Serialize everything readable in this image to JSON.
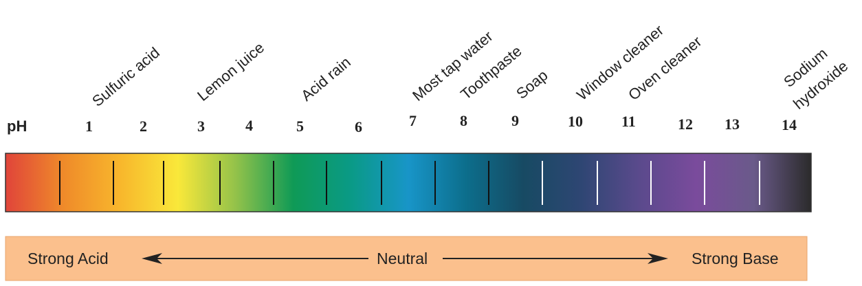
{
  "ph_label": "pH",
  "numbers": [
    "1",
    "2",
    "3",
    "4",
    "5",
    "6",
    "7",
    "8",
    "9",
    "10",
    "11",
    "12",
    "13",
    "14"
  ],
  "substances": [
    {
      "label": "Sulfuric acid"
    },
    {
      "label": "Lemon juice"
    },
    {
      "label": "Acid rain"
    },
    {
      "label": "Most tap water"
    },
    {
      "label": "Toothpaste"
    },
    {
      "label": "Soap"
    },
    {
      "label": "Window cleaner"
    },
    {
      "label": "Oven cleaner"
    },
    {
      "label": "Sodium",
      "label_line2": "hydroxide"
    }
  ],
  "scale": {
    "left": "Strong Acid",
    "center": "Neutral",
    "right": "Strong Base"
  },
  "colors": {
    "bar_stops": [
      "#e0443a",
      "#ef8a2a",
      "#f8b72c",
      "#f9e83a",
      "#93c24a",
      "#0f9a56",
      "#0a9a86",
      "#1895c8",
      "#0c6e8c",
      "#174a63",
      "#2e4673",
      "#5a4a8c",
      "#7a4b9c",
      "#6a5a8a",
      "#2b2b2b"
    ],
    "scale_bg": "#fbc08d",
    "text": "#222222"
  }
}
